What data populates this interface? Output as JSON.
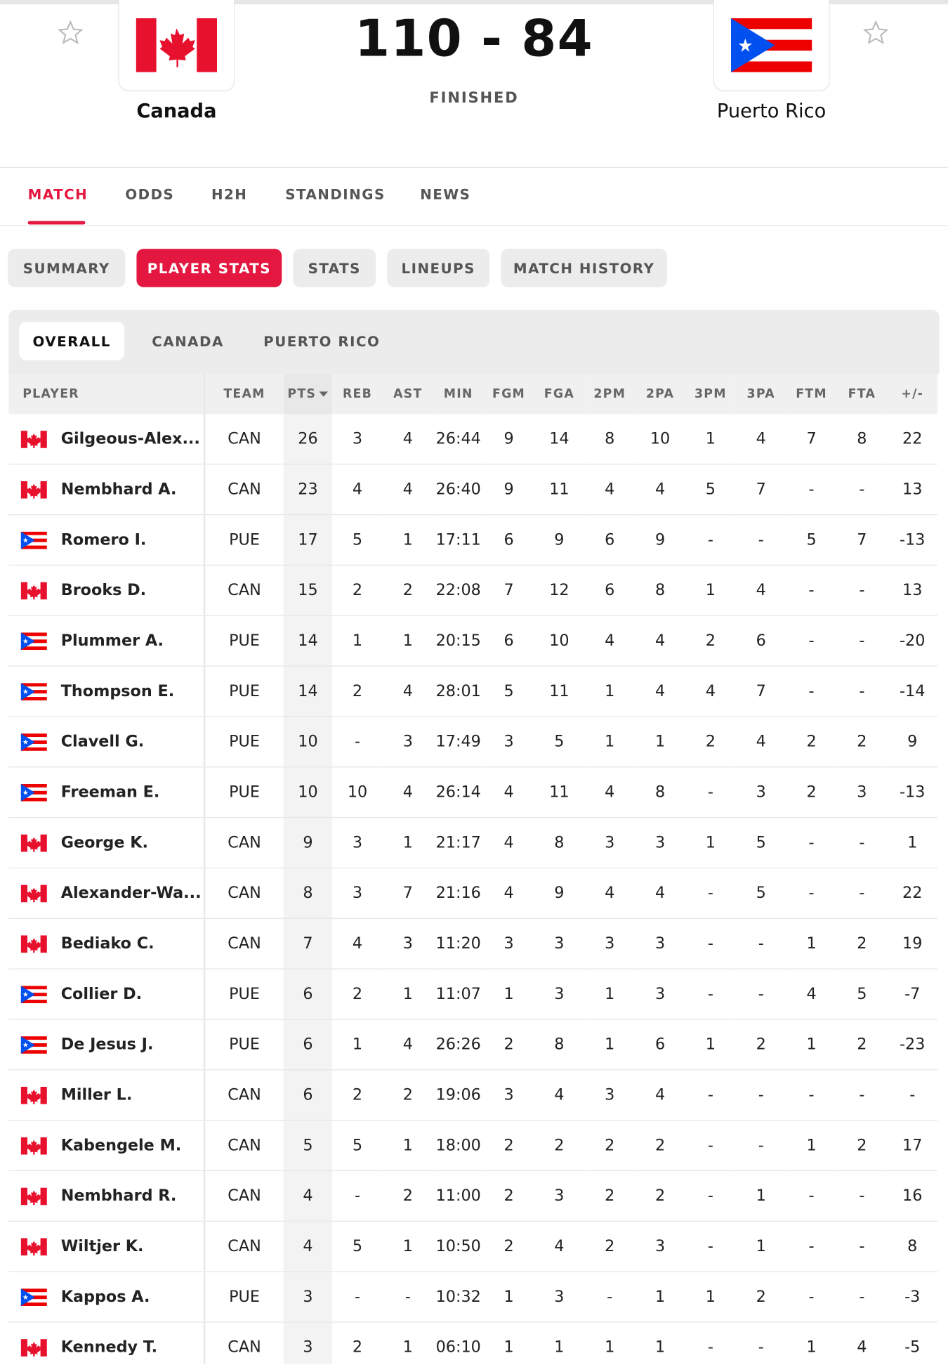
{
  "match": {
    "home": "Canada",
    "away": "Puerto Rico",
    "score_home": 110,
    "separator": "-",
    "score_away": 84,
    "status": "FINISHED"
  },
  "tabs": [
    "MATCH",
    "ODDS",
    "H2H",
    "STANDINGS",
    "NEWS"
  ],
  "subtabs": [
    "SUMMARY",
    "PLAYER STATS",
    "STATS",
    "LINEUPS",
    "MATCH HISTORY"
  ],
  "filters": [
    "OVERALL",
    "CANADA",
    "PUERTO RICO"
  ],
  "table": {
    "header": [
      "PLAYER",
      "TEAM",
      "PTS",
      "REB",
      "AST",
      "MIN",
      "FGM",
      "FGA",
      "2PM",
      "2PA",
      "3PM",
      "3PA",
      "FTM",
      "FTA",
      "+/-"
    ],
    "rows": [
      [
        "Gilgeous-Alex...",
        "CAN",
        26,
        3,
        4,
        "26:44",
        9,
        14,
        8,
        10,
        1,
        4,
        7,
        8,
        22
      ],
      [
        "Nembhard A.",
        "CAN",
        23,
        4,
        4,
        "26:40",
        9,
        11,
        4,
        4,
        5,
        7,
        "-",
        "-",
        13
      ],
      [
        "Romero I.",
        "PUE",
        17,
        5,
        1,
        "17:11",
        6,
        9,
        6,
        9,
        "-",
        "-",
        5,
        7,
        -13
      ],
      [
        "Brooks D.",
        "CAN",
        15,
        2,
        2,
        "22:08",
        7,
        12,
        6,
        8,
        1,
        4,
        "-",
        "-",
        13
      ],
      [
        "Plummer A.",
        "PUE",
        14,
        1,
        1,
        "20:15",
        6,
        10,
        4,
        4,
        2,
        6,
        "-",
        "-",
        -20
      ],
      [
        "Thompson E.",
        "PUE",
        14,
        2,
        4,
        "28:01",
        5,
        11,
        1,
        4,
        4,
        7,
        "-",
        "-",
        -14
      ],
      [
        "Clavell G.",
        "PUE",
        10,
        "-",
        3,
        "17:49",
        3,
        5,
        1,
        1,
        2,
        4,
        2,
        2,
        9
      ],
      [
        "Freeman E.",
        "PUE",
        10,
        10,
        4,
        "26:14",
        4,
        11,
        4,
        8,
        "-",
        3,
        2,
        3,
        -13
      ],
      [
        "George K.",
        "CAN",
        9,
        3,
        1,
        "21:17",
        4,
        8,
        3,
        3,
        1,
        5,
        "-",
        "-",
        1
      ],
      [
        "Alexander-Wa...",
        "CAN",
        8,
        3,
        7,
        "21:16",
        4,
        9,
        4,
        4,
        "-",
        5,
        "-",
        "-",
        22
      ],
      [
        "Bediako C.",
        "CAN",
        7,
        4,
        3,
        "11:20",
        3,
        3,
        3,
        3,
        "-",
        "-",
        1,
        2,
        19
      ],
      [
        "Collier D.",
        "PUE",
        6,
        2,
        1,
        "11:07",
        1,
        3,
        1,
        3,
        "-",
        "-",
        4,
        5,
        -7
      ],
      [
        "De Jesus J.",
        "PUE",
        6,
        1,
        4,
        "26:26",
        2,
        8,
        1,
        6,
        1,
        2,
        1,
        2,
        -23
      ],
      [
        "Miller L.",
        "CAN",
        6,
        2,
        2,
        "19:06",
        3,
        4,
        3,
        4,
        "-",
        "-",
        "-",
        "-",
        "-"
      ],
      [
        "Kabengele M.",
        "CAN",
        5,
        5,
        1,
        "18:00",
        2,
        2,
        2,
        2,
        "-",
        "-",
        1,
        2,
        17
      ],
      [
        "Nembhard R.",
        "CAN",
        4,
        "-",
        2,
        "11:00",
        2,
        3,
        2,
        2,
        "-",
        1,
        "-",
        "-",
        16
      ],
      [
        "Wiltjer K.",
        "CAN",
        4,
        5,
        1,
        "10:50",
        2,
        4,
        2,
        3,
        "-",
        1,
        "-",
        "-",
        8
      ],
      [
        "Kappos A.",
        "PUE",
        3,
        "-",
        "-",
        "10:32",
        1,
        3,
        "-",
        1,
        1,
        2,
        "-",
        "-",
        -3
      ],
      [
        "Kennedy T.",
        "CAN",
        3,
        2,
        1,
        "06:10",
        1,
        1,
        1,
        1,
        "-",
        "-",
        1,
        4,
        -5
      ]
    ]
  }
}
